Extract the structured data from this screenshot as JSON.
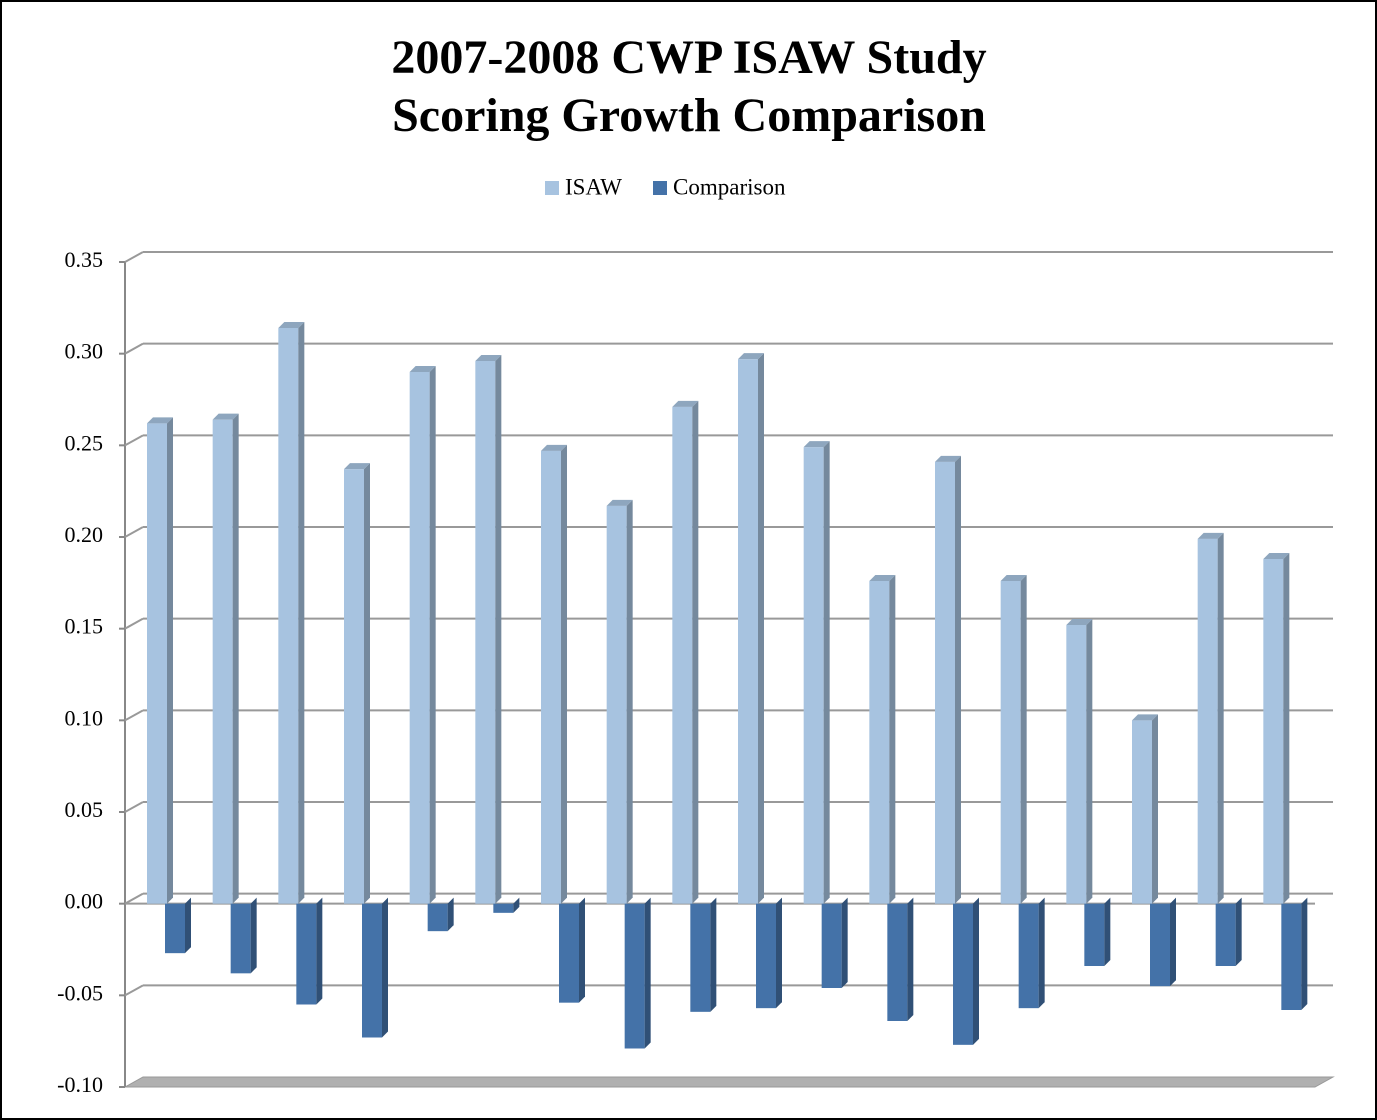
{
  "chart_data": {
    "type": "bar",
    "title": "2007-2008 CWP ISAW Study",
    "subtitle": "Scoring Growth Comparison",
    "categories": [
      null,
      null,
      null,
      null,
      null,
      null,
      null,
      null,
      null,
      null,
      null,
      null,
      null,
      null,
      null,
      null,
      null,
      null
    ],
    "series": [
      {
        "name": "ISAW",
        "color": "#a7c3e0",
        "values": [
          0.262,
          0.264,
          0.314,
          0.237,
          0.29,
          0.296,
          0.247,
          0.217,
          0.271,
          0.297,
          0.249,
          0.176,
          0.241,
          0.176,
          0.152,
          0.1,
          0.199,
          0.188
        ]
      },
      {
        "name": "Comparison",
        "color": "#4472a8",
        "values": [
          -0.027,
          -0.038,
          -0.055,
          -0.073,
          -0.015,
          -0.005,
          -0.054,
          -0.079,
          -0.059,
          -0.057,
          -0.046,
          -0.064,
          -0.077,
          -0.057,
          -0.034,
          -0.045,
          -0.034,
          -0.058
        ]
      }
    ],
    "ylim": [
      -0.1,
      0.35
    ],
    "yticks": [
      {
        "value": -0.1,
        "label": "-0.10"
      },
      -0.05,
      {
        "value": 0,
        "label": "0.00"
      },
      0.05,
      {
        "value": 0.1,
        "label": "0.10"
      },
      0.15,
      {
        "value": 0.2,
        "label": "0.20"
      },
      0.25,
      {
        "value": 0.3,
        "label": "0.30"
      },
      0.35
    ],
    "grid": true,
    "legend": "top"
  }
}
